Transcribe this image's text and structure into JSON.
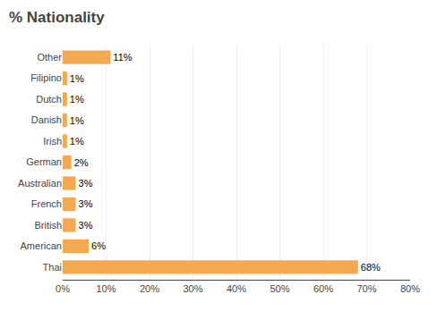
{
  "chart_data": {
    "type": "bar",
    "orientation": "horizontal",
    "title": "% Nationality",
    "categories": [
      "Thai",
      "American",
      "British",
      "French",
      "Australian",
      "German",
      "Irish",
      "Danish",
      "Dutch",
      "Filipino",
      "Other"
    ],
    "values": [
      68,
      6,
      3,
      3,
      3,
      2,
      1,
      1,
      1,
      1,
      11
    ],
    "value_labels": [
      "68%",
      "6%",
      "3%",
      "3%",
      "3%",
      "2%",
      "1%",
      "1%",
      "1%",
      "1%",
      "11%"
    ],
    "data_labels": true,
    "color": "#F5A94E",
    "xlim": [
      0,
      80
    ],
    "xticks": [
      {
        "value": 0,
        "label": "0%"
      },
      {
        "value": 10,
        "label": "10%"
      },
      {
        "value": 20,
        "label": "20%"
      },
      {
        "value": 30,
        "label": "30%"
      },
      {
        "value": 40,
        "label": "40%"
      },
      {
        "value": 50,
        "label": "50%"
      },
      {
        "value": 60,
        "label": "60%"
      },
      {
        "value": 70,
        "label": "70%"
      },
      {
        "value": 80,
        "label": "80%"
      }
    ],
    "grid": true
  }
}
